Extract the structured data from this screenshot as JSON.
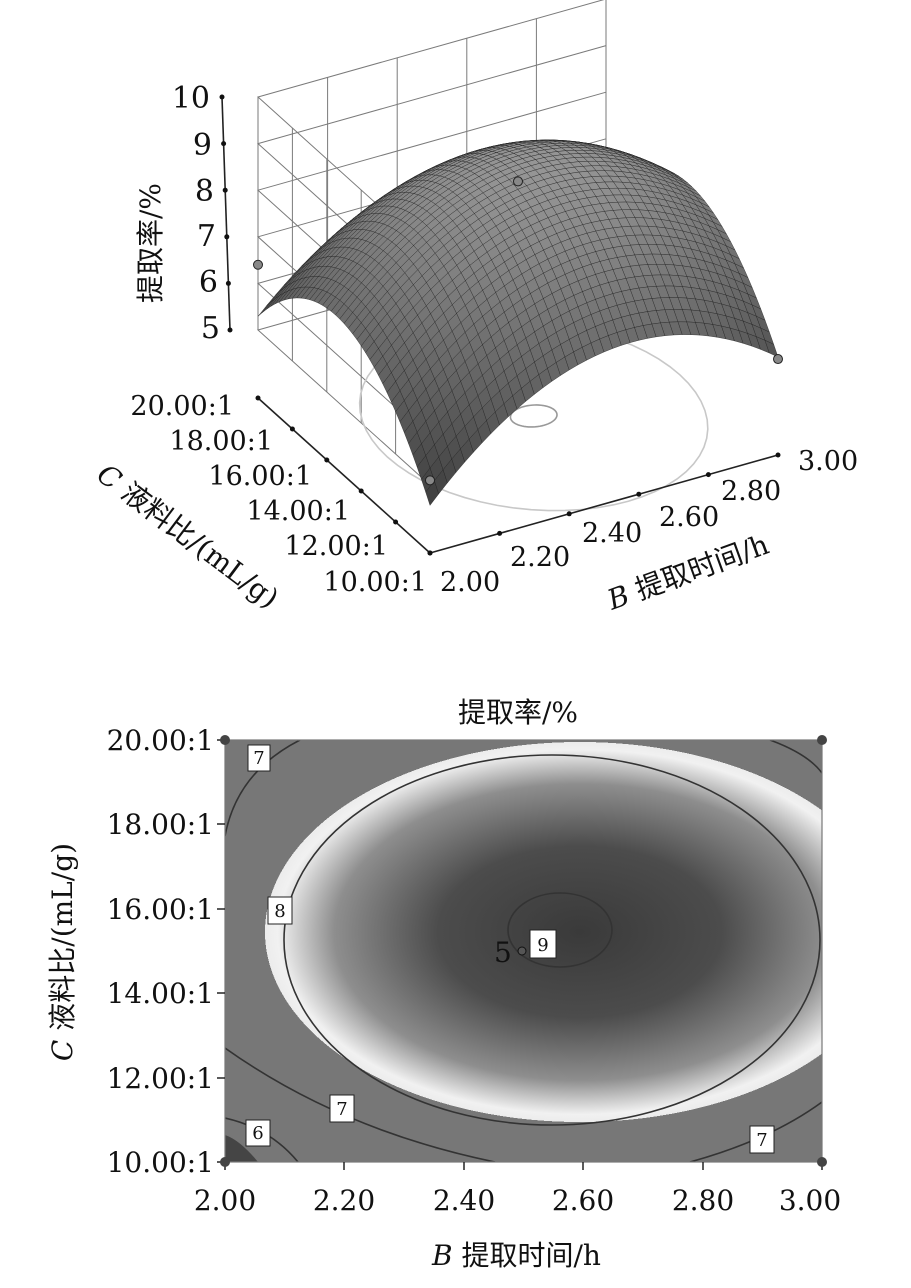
{
  "chart_data": [
    {
      "type": "surface",
      "zlabel": "提取率/%",
      "xlabel_italic": "B",
      "xlabel_rest": " 提取时间/h",
      "ylabel_italic": "C",
      "ylabel_rest": " 液料比/(mL/g)",
      "z_ticks": [
        "10",
        "9",
        "8",
        "7",
        "6",
        "5"
      ],
      "x_ticks": [
        "2.00",
        "2.20",
        "2.40",
        "2.60",
        "2.80",
        "3.00"
      ],
      "y_ticks": [
        "20.00:1",
        "18.00:1",
        "16.00:1",
        "14.00:1",
        "12.00:1",
        "10.00:1"
      ],
      "x_range": [
        2.0,
        3.0
      ],
      "y_range": [
        10,
        20
      ],
      "z_range": [
        5,
        10
      ],
      "design_points": [
        {
          "x": 2.0,
          "y": 20,
          "z": 6.4
        },
        {
          "x": 3.0,
          "y": 10,
          "z": 5.6
        },
        {
          "x": 2.0,
          "y": 10,
          "z": 5.1
        },
        {
          "x": 2.5,
          "y": 15,
          "z": 8.8
        }
      ],
      "grid": true
    },
    {
      "type": "contour",
      "title": "提取率/%",
      "xlabel_italic": "B",
      "xlabel_rest": " 提取时间/h",
      "ylabel_italic": "C",
      "ylabel_rest": " 液料比/(mL/g)",
      "x_ticks": [
        "2.00",
        "2.20",
        "2.40",
        "2.60",
        "2.80",
        "3.00"
      ],
      "y_ticks": [
        "20.00:1",
        "18.00:1",
        "16.00:1",
        "14.00:1",
        "12.00:1",
        "10.00:1"
      ],
      "x_range": [
        2.0,
        3.0
      ],
      "y_range": [
        10,
        20
      ],
      "contour_labels": [
        {
          "text": "7",
          "x": 2.06,
          "y": 19.7
        },
        {
          "text": "8",
          "x": 2.09,
          "y": 16.0
        },
        {
          "text": "9",
          "x": 2.53,
          "y": 15.2
        },
        {
          "text": "7",
          "x": 2.2,
          "y": 11.3
        },
        {
          "text": "6",
          "x": 2.055,
          "y": 10.7
        },
        {
          "text": "7",
          "x": 2.9,
          "y": 10.55
        }
      ],
      "center_point": {
        "label": "5",
        "x": 2.5,
        "y": 15.0
      },
      "corner_points": [
        {
          "x": 2.0,
          "y": 20
        },
        {
          "x": 3.0,
          "y": 20
        },
        {
          "x": 2.0,
          "y": 10
        },
        {
          "x": 3.0,
          "y": 10
        }
      ]
    }
  ]
}
